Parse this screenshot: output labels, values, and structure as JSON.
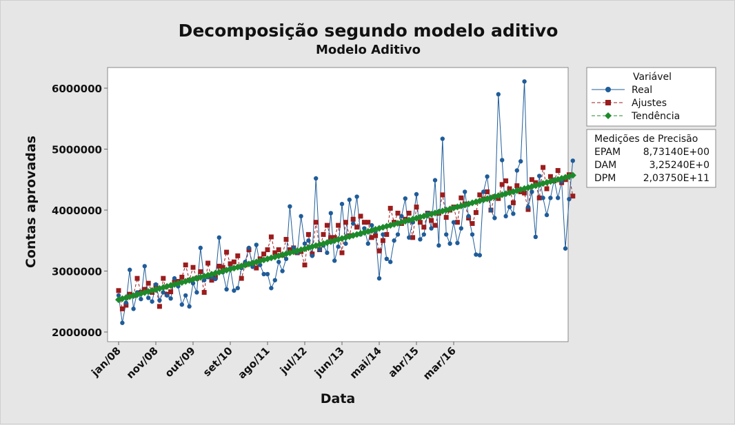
{
  "chart_data": {
    "type": "line",
    "title": "Decomposição segundo modelo aditivo",
    "subtitle": "Modelo Aditivo",
    "xlabel": "Data",
    "ylabel": "Contas aprovadas",
    "x_tick_labels": [
      "jan/08",
      "nov/08",
      "out/09",
      "set/10",
      "ago/11",
      "jul/12",
      "jun/13",
      "mai/14",
      "abr/15",
      "mar/16"
    ],
    "y_tick_labels": [
      "2000000",
      "3000000",
      "4000000",
      "5000000",
      "6000000"
    ],
    "ylim": [
      1900000,
      6400000
    ],
    "x_start": "jan/08",
    "x_interval": "monthly",
    "grid": false,
    "legend": {
      "title": "Variável",
      "placement": "right",
      "entries": [
        "Real",
        "Ajustes",
        "Tendência"
      ]
    },
    "accuracy_box": {
      "title": "Medições de Precisão",
      "rows": [
        {
          "label": "EPAM",
          "value": "8,73140E+00"
        },
        {
          "label": "DAM",
          "value": "3,25240E+0"
        },
        {
          "label": "DPM",
          "value": "2,03750E+11"
        }
      ]
    },
    "series": [
      {
        "name": "Real",
        "color": "#1f5c99",
        "marker": "circle",
        "values": [
          2600000,
          2150000,
          2480000,
          3020000,
          2380000,
          2650000,
          2540000,
          3080000,
          2560000,
          2500000,
          2780000,
          2520000,
          2650000,
          2600000,
          2550000,
          2880000,
          2750000,
          2450000,
          2600000,
          2420000,
          2800000,
          2650000,
          3380000,
          2850000,
          2900000,
          2900000,
          2870000,
          3550000,
          2980000,
          2700000,
          3050000,
          2680000,
          2720000,
          3050000,
          3150000,
          3380000,
          3070000,
          3430000,
          3100000,
          2950000,
          2950000,
          2720000,
          2850000,
          3150000,
          3000000,
          3200000,
          4060000,
          3380000,
          3300000,
          3900000,
          3450000,
          3500000,
          3250000,
          4520000,
          3350000,
          3420000,
          3300000,
          3950000,
          3170000,
          3400000,
          4100000,
          3450000,
          4170000,
          3780000,
          4220000,
          3600000,
          3700000,
          3450000,
          3750000,
          3650000,
          2880000,
          3600000,
          3200000,
          3150000,
          3500000,
          3600000,
          3900000,
          4190000,
          3550000,
          3800000,
          4260000,
          3520000,
          3600000,
          3950000,
          3700000,
          4490000,
          3420000,
          5170000,
          3600000,
          3450000,
          3800000,
          3460000,
          3700000,
          4300000,
          3900000,
          3600000,
          3270000,
          3260000,
          4300000,
          4550000,
          4000000,
          3870000,
          5900000,
          4820000,
          3900000,
          4050000,
          3940000,
          4650000,
          4800000,
          6110000,
          4050000,
          4300000,
          3560000,
          4560000,
          4200000,
          3920000,
          4200000,
          4500000,
          4200000,
          4470000,
          3370000,
          4180000,
          4810000
        ],
        "_end": 0
      },
      {
        "name": "Ajustes",
        "color": "#9b1c1c",
        "marker": "square",
        "values": [
          2680000,
          2380000,
          2440000,
          2620000,
          2600000,
          2880000,
          2650000,
          2700000,
          2800000,
          2650000,
          2760000,
          2420000,
          2880000,
          2620000,
          2660000,
          2820000,
          2830000,
          2900000,
          3100000,
          2850000,
          3060000,
          2880000,
          2990000,
          2650000,
          3130000,
          2850000,
          2900000,
          3080000,
          3060000,
          3310000,
          3120000,
          3150000,
          3250000,
          2880000,
          3100000,
          3350000,
          3120000,
          3050000,
          3200000,
          3280000,
          3350000,
          3560000,
          3300000,
          3350000,
          3260000,
          3520000,
          3350000,
          3380000,
          3300000,
          3320000,
          3100000,
          3600000,
          3280000,
          3800000,
          3350000,
          3600000,
          3750000,
          3550000,
          3550000,
          3750000,
          3300000,
          3800000,
          3580000,
          3850000,
          3720000,
          3900000,
          3800000,
          3800000,
          3550000,
          3580000,
          3330000,
          3500000,
          3600000,
          4030000,
          3800000,
          3950000,
          3780000,
          3850000,
          3950000,
          3550000,
          4050000,
          3800000,
          3720000,
          3950000,
          3830000,
          3750000,
          3950000,
          4250000,
          3880000,
          4000000,
          4050000,
          3800000,
          4200000,
          4100000,
          3870000,
          3780000,
          3960000,
          4250000,
          4180000,
          4300000,
          4000000,
          4220000,
          4190000,
          4420000,
          4480000,
          4350000,
          4120000,
          4400000,
          4300000,
          4280000,
          4010000,
          4500000,
          4450000,
          4200000,
          4700000,
          4350000,
          4550000,
          4480000,
          4650000,
          4450000,
          4500000,
          4580000,
          4230000
        ],
        "_end": 0
      },
      {
        "name": "Tendência",
        "color": "#1d8a2a",
        "marker": "diamond",
        "start_value": 2530000,
        "end_value": 4570000
      }
    ]
  }
}
